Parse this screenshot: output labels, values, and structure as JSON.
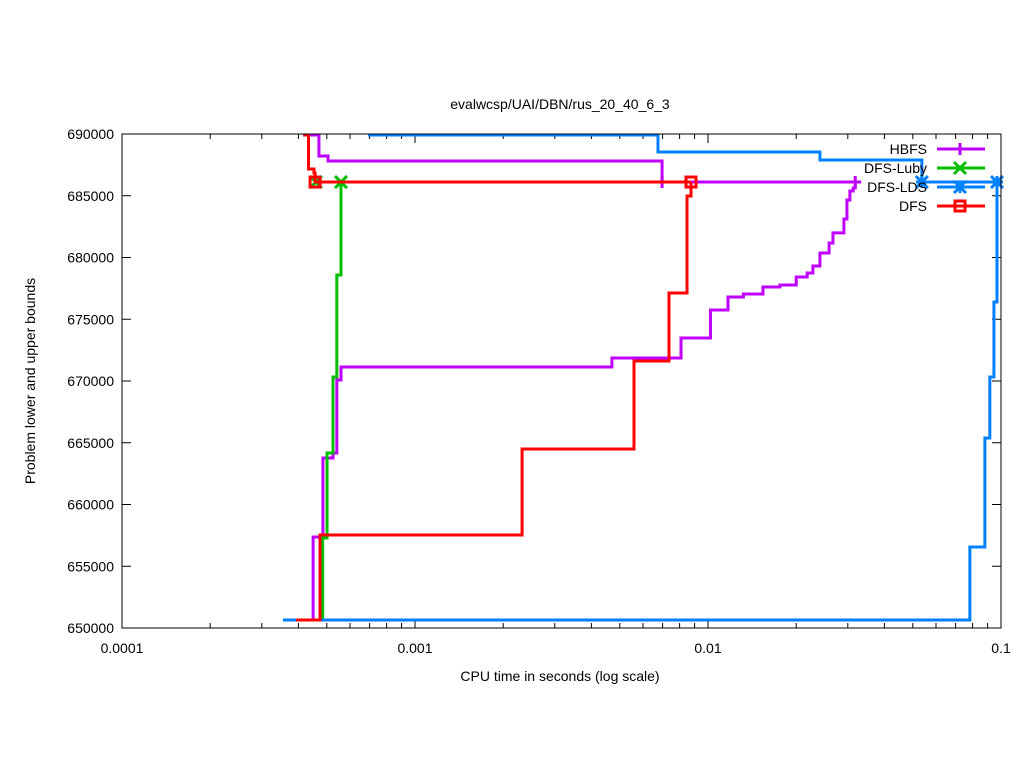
{
  "chart_data": {
    "type": "line",
    "title": "evalwcsp/UAI/DBN/rus_20_40_6_3",
    "xlabel": "CPU time in seconds (log scale)",
    "ylabel": "Problem lower and upper bounds",
    "xscale": "log",
    "xlim": [
      0.0001,
      0.1
    ],
    "ylim": [
      650000,
      690000
    ],
    "xticks": [
      0.0001,
      0.001,
      0.01,
      0.1
    ],
    "xtick_labels": [
      "0.0001",
      "0.001",
      "0.01",
      "0.1"
    ],
    "yticks": [
      650000,
      655000,
      660000,
      665000,
      670000,
      675000,
      680000,
      685000,
      690000
    ],
    "ytick_labels": [
      "650000",
      "655000",
      "660000",
      "665000",
      "670000",
      "675000",
      "680000",
      "685000",
      "690000"
    ],
    "grid": false,
    "legend_position": "top-right",
    "step_style": "steps",
    "series": [
      {
        "name": "HBFS",
        "color": "#c000ff",
        "marker": "plus",
        "lower": [
          [
            0.000449,
            650650
          ],
          [
            0.000449,
            657370
          ],
          [
            0.000485,
            663770
          ],
          [
            0.000525,
            664170
          ],
          [
            0.000541,
            670080
          ],
          [
            0.000559,
            671130
          ],
          [
            0.0047,
            671860
          ],
          [
            0.00809,
            673480
          ],
          [
            0.0102,
            675750
          ],
          [
            0.0117,
            676800
          ],
          [
            0.0132,
            677040
          ],
          [
            0.0154,
            677610
          ],
          [
            0.0176,
            677770
          ],
          [
            0.02,
            678420
          ],
          [
            0.0218,
            678740
          ],
          [
            0.0228,
            679310
          ],
          [
            0.0241,
            680360
          ],
          [
            0.0259,
            681170
          ],
          [
            0.0267,
            681990
          ],
          [
            0.0291,
            683120
          ],
          [
            0.0298,
            684660
          ],
          [
            0.0305,
            685380
          ],
          [
            0.0313,
            685630
          ],
          [
            0.0318,
            686110
          ]
        ],
        "upper": [
          [
            0.000431,
            689920
          ],
          [
            0.00047,
            688220
          ],
          [
            0.000505,
            687810
          ],
          [
            0.00697,
            686110
          ],
          [
            0.0318,
            686110
          ]
        ],
        "markers": [
          [
            0.00697,
            686110
          ],
          [
            0.0318,
            686110
          ]
        ]
      },
      {
        "name": "DFS-Luby",
        "color": "#00c000",
        "marker": "cross",
        "lower": [
          [
            0.000484,
            650650
          ],
          [
            0.000484,
            657290
          ],
          [
            0.000501,
            664170
          ],
          [
            0.000525,
            670320
          ],
          [
            0.000541,
            678580
          ],
          [
            0.000559,
            686110
          ]
        ],
        "upper": [
          [
            0.000459,
            686110
          ],
          [
            0.000559,
            686110
          ]
        ],
        "markers": [
          [
            0.000459,
            686110
          ],
          [
            0.000559,
            686110
          ]
        ]
      },
      {
        "name": "DFS-LDS",
        "color": "#0080ff",
        "marker": "star",
        "lower": [
          [
            0.000354,
            650650
          ],
          [
            0.0783,
            656560
          ],
          [
            0.0881,
            665380
          ],
          [
            0.0916,
            670320
          ],
          [
            0.0946,
            676400
          ],
          [
            0.0969,
            686110
          ]
        ],
        "upper": [
          [
            0.000691,
            689920
          ],
          [
            0.00675,
            688540
          ],
          [
            0.0241,
            687890
          ],
          [
            0.0537,
            686110
          ],
          [
            0.0969,
            686110
          ]
        ],
        "markers": [
          [
            0.0537,
            686110
          ],
          [
            0.0969,
            686110
          ]
        ]
      },
      {
        "name": "DFS",
        "color": "#ff0000",
        "marker": "square",
        "lower": [
          [
            0.000393,
            650650
          ],
          [
            0.000474,
            657530
          ],
          [
            0.00232,
            664490
          ],
          [
            0.00559,
            671620
          ],
          [
            0.00736,
            677130
          ],
          [
            0.00848,
            684980
          ],
          [
            0.00875,
            686110
          ]
        ],
        "upper": [
          [
            0.000415,
            689920
          ],
          [
            0.000433,
            687170
          ],
          [
            0.000452,
            686840
          ],
          [
            0.000456,
            686110
          ],
          [
            0.00875,
            686110
          ]
        ],
        "markers": [
          [
            0.000456,
            686110
          ],
          [
            0.00875,
            686110
          ]
        ]
      }
    ]
  }
}
